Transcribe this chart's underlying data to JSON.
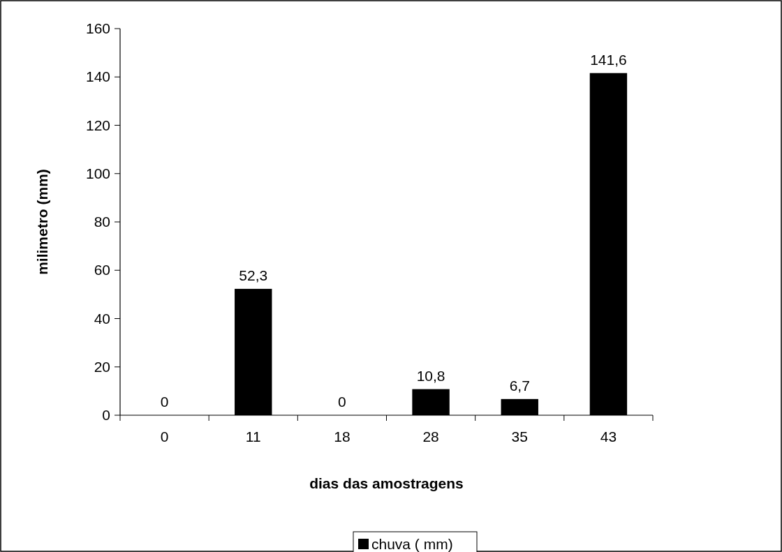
{
  "chart_data": {
    "type": "bar",
    "xlabel": "dias das amostragens",
    "ylabel": "milimetro (mm)",
    "categories": [
      "0",
      "11",
      "18",
      "28",
      "35",
      "43"
    ],
    "series": [
      {
        "name": "chuva ( mm)",
        "color": "#000000",
        "values": [
          0,
          52.3,
          0,
          10.8,
          6.7,
          141.6
        ],
        "value_labels": [
          "0",
          "52,3",
          "0",
          "10,8",
          "6,7",
          "141,6"
        ]
      }
    ],
    "ylim": [
      0,
      160
    ],
    "yticks": [
      0,
      20,
      40,
      60,
      80,
      100,
      120,
      140,
      160
    ],
    "grid": false,
    "legend": "bottom"
  }
}
